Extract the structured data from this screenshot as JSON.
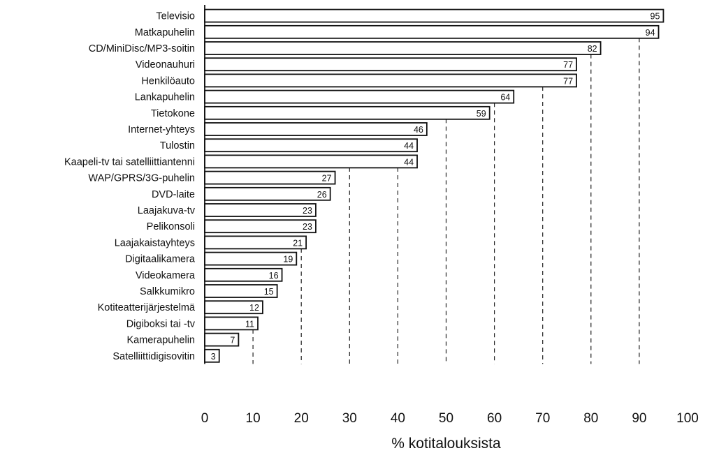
{
  "chart_data": {
    "type": "bar",
    "orientation": "horizontal",
    "categories": [
      "Televisio",
      "Matkapuhelin",
      "CD/MiniDisc/MP3-soitin",
      "Videonauhuri",
      "Henkilöauto",
      "Lankapuhelin",
      "Tietokone",
      "Internet-yhteys",
      "Tulostin",
      "Kaapeli-tv tai satelliittiantenni",
      "WAP/GPRS/3G-puhelin",
      "DVD-laite",
      "Laajakuva-tv",
      "Pelikonsoli",
      "Laajakaistayhteys",
      "Digitaalikamera",
      "Videokamera",
      "Salkkumikro",
      "Kotiteatterijärjestelmä",
      "Digiboksi tai -tv",
      "Kamerapuhelin",
      "Satelliittidigisovitin"
    ],
    "values": [
      95,
      94,
      82,
      77,
      77,
      64,
      59,
      46,
      44,
      44,
      27,
      26,
      23,
      23,
      21,
      19,
      16,
      15,
      12,
      11,
      7,
      3
    ],
    "xlabel": "% kotitalouksista",
    "ylabel": "",
    "xlim": [
      0,
      100
    ],
    "xticks": [
      0,
      10,
      20,
      30,
      40,
      50,
      60,
      70,
      80,
      90,
      100
    ],
    "grid": "vertical dashed lines at ticks, drawn only beyond bar ends",
    "legend": "none",
    "colors": {
      "bar_fill": "#ffffff",
      "bar_edge": "#111111"
    }
  }
}
